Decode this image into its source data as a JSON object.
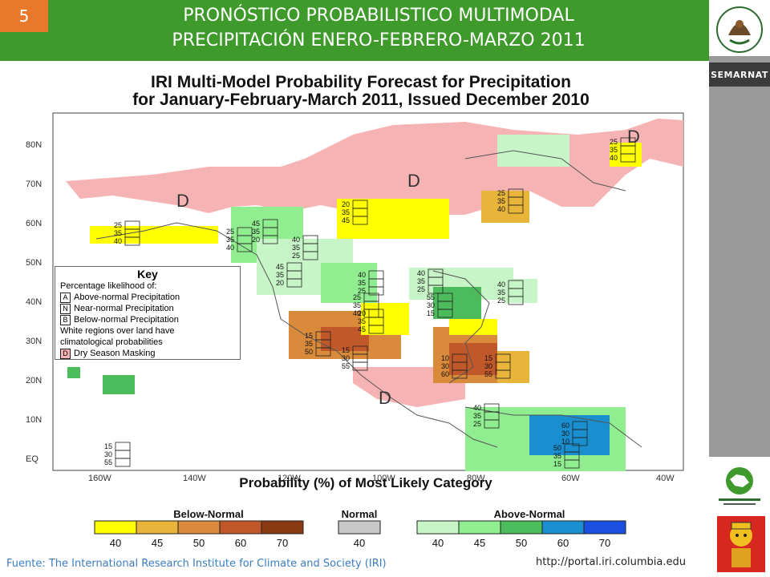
{
  "slide": {
    "number": "5"
  },
  "header": {
    "title_line1": "PRONÓSTICO PROBABILISTICO MULTIMODAL",
    "title_line2": "PRECIPITACIÓN ENERO-FEBRERO-MARZO 2011"
  },
  "sidebar": {
    "semarnat_label": "SEMARNAT"
  },
  "map": {
    "title_line1": "IRI Multi-Model Probability Forecast for Precipitation",
    "title_line2": "for January-February-March 2011, Issued December 2010",
    "lat_labels": [
      "80N",
      "70N",
      "60N",
      "50N",
      "40N",
      "30N",
      "20N",
      "10N",
      "EQ"
    ],
    "lon_labels": [
      "160W",
      "140W",
      "120W",
      "100W",
      "80W",
      "60W",
      "40W"
    ],
    "dry_mark": "D",
    "key": {
      "title": "Key",
      "subtitle": "Percentage likelihood of:",
      "row_a": "Above-normal Precipitation",
      "row_n": "Near-normal Precipitation",
      "row_b": "Below-normal Precipitation",
      "note1": "White regions over land have",
      "note2": "climatological probabilities",
      "row_d": "Dry Season Masking",
      "letter_a": "A",
      "letter_n": "N",
      "letter_b": "B",
      "letter_d": "D"
    },
    "legend": {
      "title": "Probability (%) of Most Likely Category",
      "below_label": "Below-Normal",
      "normal_label": "Normal",
      "above_label": "Above-Normal",
      "below_ticks": [
        "40",
        "45",
        "50",
        "60",
        "70"
      ],
      "normal_ticks": [
        "40"
      ],
      "above_ticks": [
        "40",
        "45",
        "50",
        "60",
        "70"
      ],
      "below_colors": [
        "#ffff00",
        "#e8b53a",
        "#d98a3a",
        "#c0582a",
        "#8a3a10"
      ],
      "normal_colors": [
        "#c8c8c8"
      ],
      "above_colors": [
        "#c8f5c8",
        "#90ee90",
        "#4cbb5c",
        "#1a8fd0",
        "#1a4fe0"
      ]
    },
    "stacks": [
      {
        "t": "25",
        "m": "35",
        "b": "40"
      },
      {
        "t": "25",
        "m": "35",
        "b": "40"
      },
      {
        "t": "25",
        "m": "35",
        "b": "40"
      },
      {
        "t": "20",
        "m": "35",
        "b": "45"
      },
      {
        "t": "25",
        "m": "35",
        "b": "40"
      },
      {
        "t": "45",
        "m": "35",
        "b": "20"
      },
      {
        "t": "40",
        "m": "35",
        "b": "25"
      },
      {
        "t": "45",
        "m": "35",
        "b": "20"
      },
      {
        "t": "40",
        "m": "35",
        "b": "25"
      },
      {
        "t": "40",
        "m": "35",
        "b": "25"
      },
      {
        "t": "25",
        "m": "35",
        "b": "40"
      },
      {
        "t": "20",
        "m": "35",
        "b": "45"
      },
      {
        "t": "55",
        "m": "30",
        "b": "15"
      },
      {
        "t": "40",
        "m": "35",
        "b": "25"
      },
      {
        "t": "15",
        "m": "35",
        "b": "50"
      },
      {
        "t": "15",
        "m": "30",
        "b": "55"
      },
      {
        "t": "10",
        "m": "30",
        "b": "60"
      },
      {
        "t": "15",
        "m": "30",
        "b": "55"
      },
      {
        "t": "40",
        "m": "35",
        "b": "25"
      },
      {
        "t": "60",
        "m": "30",
        "b": "10"
      },
      {
        "t": "50",
        "m": "35",
        "b": "15"
      },
      {
        "t": "15",
        "m": "30",
        "b": "55"
      }
    ]
  },
  "footer": {
    "source": "Fuente: The International Research Institute for Climate and Society (IRI)",
    "url": "http://portal.iri.columbia.edu"
  }
}
